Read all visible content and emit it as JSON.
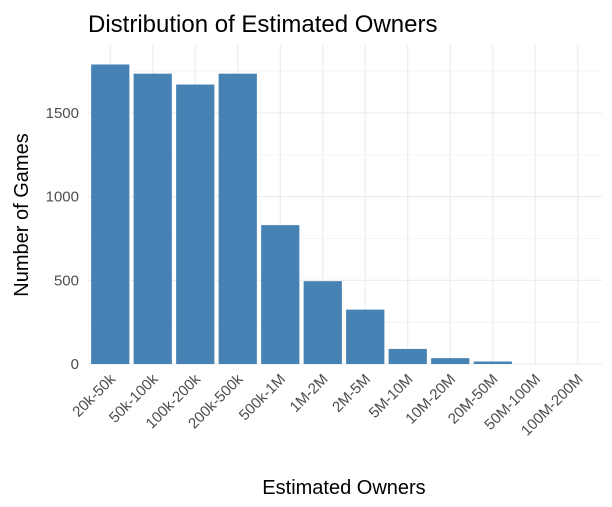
{
  "chart_data": {
    "type": "bar",
    "title": "Distribution of Estimated Owners",
    "xlabel": "Estimated Owners",
    "ylabel": "Number of Games",
    "categories": [
      "20k-50k",
      "50k-100k",
      "100k-200k",
      "200k-500k",
      "500k-1M",
      "1M-2M",
      "2M-5M",
      "5M-10M",
      "10M-20M",
      "20M-50M",
      "50M-100M",
      "100M-200M"
    ],
    "values": [
      1790,
      1735,
      1670,
      1735,
      830,
      495,
      325,
      90,
      35,
      15,
      0,
      0
    ],
    "yticks": [
      0,
      500,
      1000,
      1500
    ],
    "ylim": [
      0,
      1800
    ],
    "grid": true,
    "bar_color": "#4682B4"
  }
}
